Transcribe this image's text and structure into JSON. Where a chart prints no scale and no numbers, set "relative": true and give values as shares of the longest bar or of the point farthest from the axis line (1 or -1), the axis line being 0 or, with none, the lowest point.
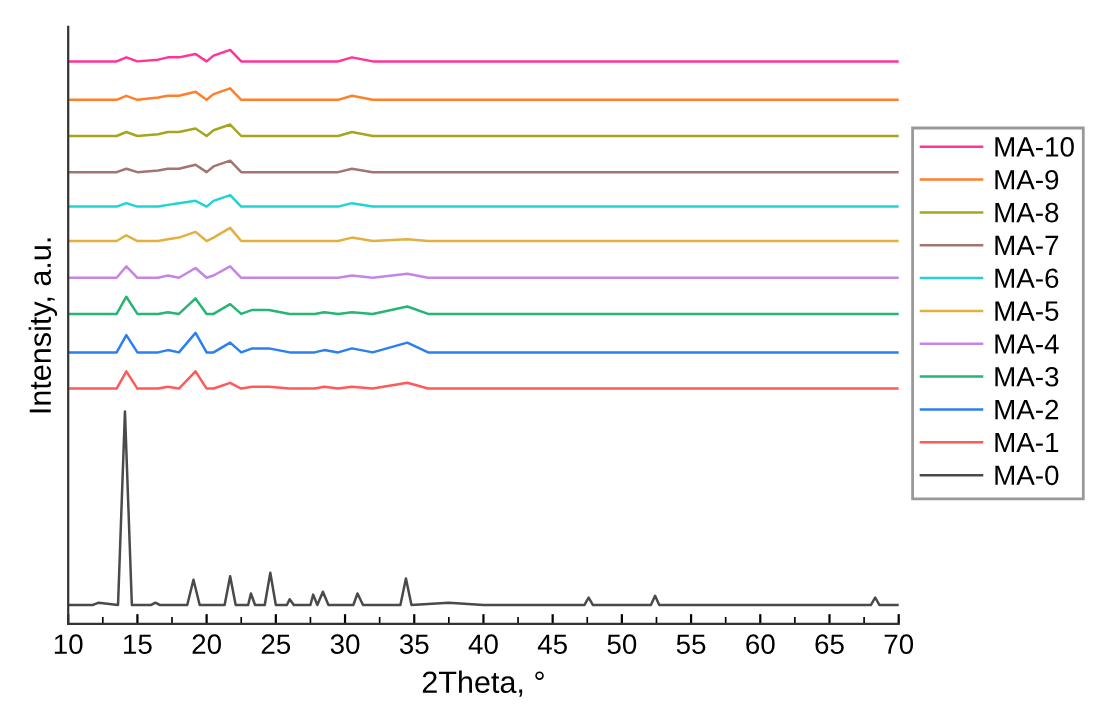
{
  "chart_data": {
    "type": "line",
    "relative": true,
    "xlabel": "2Theta, °",
    "ylabel": "Intensity, a.u.",
    "xlim": [
      10,
      70
    ],
    "xticks": [
      10,
      15,
      20,
      25,
      30,
      35,
      40,
      45,
      50,
      55,
      60,
      65,
      70
    ],
    "legend": "right",
    "grid": false,
    "marker": "none",
    "line_style": "solid",
    "x": [
      10,
      12,
      13.5,
      14.2,
      15,
      16.5,
      17.2,
      18,
      19.2,
      20,
      20.5,
      21.7,
      22.5,
      23.3,
      24.5,
      26,
      27.8,
      28.5,
      29.5,
      30.5,
      32,
      34.5,
      36,
      40,
      45,
      50,
      55,
      60,
      65,
      70
    ],
    "series": [
      {
        "name": "MA-10",
        "color": "#ff3399",
        "values": [
          0.98,
          0.98,
          0.98,
          0.987,
          0.98,
          0.983,
          0.987,
          0.987,
          0.993,
          0.98,
          0.99,
          1.0,
          0.98,
          0.98,
          0.98,
          0.98,
          0.98,
          0.98,
          0.98,
          0.987,
          0.98,
          0.98,
          0.98,
          0.98,
          0.98,
          0.98,
          0.98,
          0.98,
          0.98,
          0.98
        ]
      },
      {
        "name": "MA-9",
        "color": "#ff7f2a",
        "values": [
          0.913,
          0.913,
          0.913,
          0.92,
          0.913,
          0.917,
          0.92,
          0.92,
          0.927,
          0.913,
          0.923,
          0.933,
          0.913,
          0.913,
          0.913,
          0.913,
          0.913,
          0.913,
          0.913,
          0.92,
          0.913,
          0.913,
          0.913,
          0.913,
          0.913,
          0.913,
          0.913,
          0.913,
          0.913,
          0.913
        ]
      },
      {
        "name": "MA-8",
        "color": "#a6a51f",
        "values": [
          0.85,
          0.85,
          0.85,
          0.857,
          0.85,
          0.853,
          0.857,
          0.857,
          0.863,
          0.85,
          0.86,
          0.87,
          0.85,
          0.85,
          0.85,
          0.85,
          0.85,
          0.85,
          0.85,
          0.857,
          0.85,
          0.85,
          0.85,
          0.85,
          0.85,
          0.85,
          0.85,
          0.85,
          0.85,
          0.85
        ]
      },
      {
        "name": "MA-7",
        "color": "#a27570",
        "values": [
          0.787,
          0.787,
          0.787,
          0.793,
          0.787,
          0.79,
          0.793,
          0.793,
          0.8,
          0.787,
          0.797,
          0.807,
          0.787,
          0.787,
          0.787,
          0.787,
          0.787,
          0.787,
          0.787,
          0.793,
          0.787,
          0.787,
          0.787,
          0.787,
          0.787,
          0.787,
          0.787,
          0.787,
          0.787,
          0.787
        ]
      },
      {
        "name": "MA-6",
        "color": "#22d3d3",
        "values": [
          0.727,
          0.727,
          0.727,
          0.733,
          0.727,
          0.727,
          0.73,
          0.733,
          0.737,
          0.727,
          0.737,
          0.747,
          0.727,
          0.727,
          0.727,
          0.727,
          0.727,
          0.727,
          0.727,
          0.733,
          0.727,
          0.727,
          0.727,
          0.727,
          0.727,
          0.727,
          0.727,
          0.727,
          0.727,
          0.727
        ]
      },
      {
        "name": "MA-5",
        "color": "#e3b03f",
        "values": [
          0.667,
          0.667,
          0.667,
          0.677,
          0.667,
          0.667,
          0.67,
          0.673,
          0.683,
          0.667,
          0.673,
          0.69,
          0.667,
          0.667,
          0.667,
          0.667,
          0.667,
          0.667,
          0.667,
          0.673,
          0.667,
          0.67,
          0.667,
          0.667,
          0.667,
          0.667,
          0.667,
          0.667,
          0.667,
          0.667
        ]
      },
      {
        "name": "MA-4",
        "color": "#c585e8",
        "values": [
          0.603,
          0.603,
          0.603,
          0.623,
          0.603,
          0.603,
          0.607,
          0.603,
          0.62,
          0.603,
          0.607,
          0.623,
          0.603,
          0.603,
          0.603,
          0.603,
          0.603,
          0.603,
          0.603,
          0.607,
          0.603,
          0.61,
          0.603,
          0.603,
          0.603,
          0.603,
          0.603,
          0.603,
          0.603,
          0.603
        ]
      },
      {
        "name": "MA-3",
        "color": "#26b573",
        "values": [
          0.54,
          0.54,
          0.54,
          0.57,
          0.54,
          0.54,
          0.543,
          0.54,
          0.567,
          0.54,
          0.54,
          0.557,
          0.54,
          0.547,
          0.547,
          0.54,
          0.54,
          0.543,
          0.54,
          0.543,
          0.54,
          0.553,
          0.54,
          0.54,
          0.54,
          0.54,
          0.54,
          0.54,
          0.54,
          0.54
        ]
      },
      {
        "name": "MA-2",
        "color": "#2b7fef",
        "values": [
          0.473,
          0.473,
          0.473,
          0.503,
          0.473,
          0.473,
          0.477,
          0.473,
          0.507,
          0.473,
          0.473,
          0.49,
          0.473,
          0.48,
          0.48,
          0.473,
          0.473,
          0.477,
          0.473,
          0.48,
          0.473,
          0.49,
          0.473,
          0.473,
          0.473,
          0.473,
          0.473,
          0.473,
          0.473,
          0.473
        ]
      },
      {
        "name": "MA-1",
        "color": "#ff5a5a",
        "values": [
          0.41,
          0.41,
          0.41,
          0.44,
          0.41,
          0.41,
          0.413,
          0.41,
          0.44,
          0.41,
          0.41,
          0.42,
          0.41,
          0.413,
          0.413,
          0.41,
          0.41,
          0.413,
          0.41,
          0.413,
          0.41,
          0.42,
          0.41,
          0.41,
          0.41,
          0.41,
          0.41,
          0.41,
          0.41,
          0.41
        ]
      },
      {
        "name": "MA-0",
        "color": "#4a4a4a",
        "x": [
          10,
          11.8,
          12.2,
          13.6,
          14.1,
          14.6,
          16,
          16.3,
          16.6,
          18.6,
          19.05,
          19.5,
          21.3,
          21.7,
          22.1,
          23.0,
          23.2,
          23.5,
          24.2,
          24.6,
          25.0,
          25.8,
          26,
          26.3,
          27.5,
          27.7,
          28.0,
          28.4,
          28.8,
          30.6,
          30.9,
          31.3,
          34.0,
          34.4,
          34.8,
          37.5,
          40,
          45,
          47.3,
          47.6,
          47.9,
          52.1,
          52.4,
          52.7,
          60,
          68.0,
          68.3,
          68.6,
          70
        ],
        "values": [
          0.033,
          0.033,
          0.037,
          0.033,
          0.37,
          0.033,
          0.033,
          0.037,
          0.033,
          0.033,
          0.077,
          0.033,
          0.033,
          0.083,
          0.033,
          0.033,
          0.053,
          0.033,
          0.033,
          0.089,
          0.033,
          0.033,
          0.043,
          0.033,
          0.033,
          0.051,
          0.033,
          0.056,
          0.033,
          0.033,
          0.053,
          0.033,
          0.033,
          0.079,
          0.033,
          0.037,
          0.033,
          0.033,
          0.033,
          0.046,
          0.033,
          0.033,
          0.049,
          0.033,
          0.033,
          0.033,
          0.046,
          0.033,
          0.033
        ]
      }
    ]
  }
}
